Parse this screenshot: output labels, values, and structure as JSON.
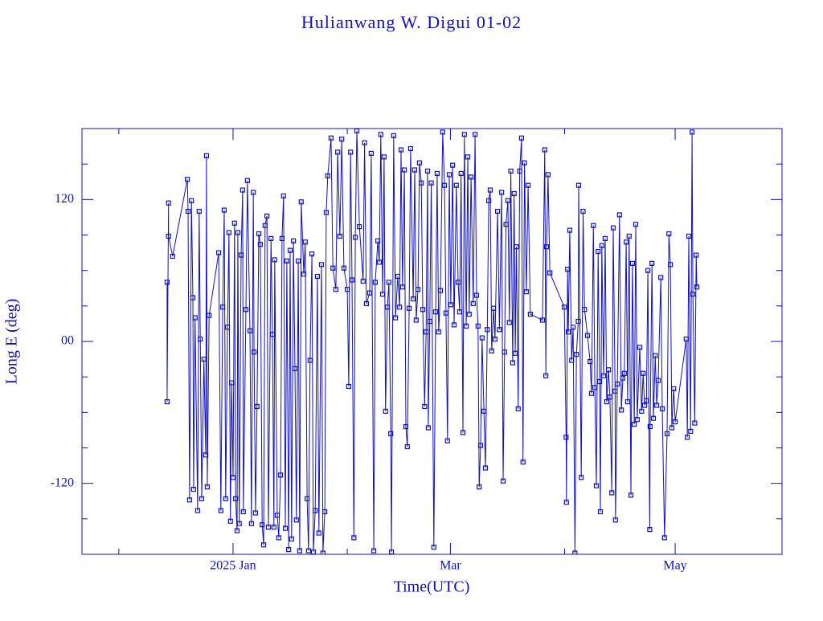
{
  "chart_data": {
    "type": "line",
    "title": "Hulianwang W. Digui 01-02",
    "xlabel": "Time(UTC)",
    "ylabel": "Long E (deg)",
    "color": "#1010c0",
    "xlim": [
      -41,
      149
    ],
    "xticks": [
      {
        "value": 0,
        "label": "2025 Jan"
      },
      {
        "value": 59,
        "label": "Mar"
      },
      {
        "value": 120,
        "label": "May"
      }
    ],
    "xminorticks": [
      -31,
      31,
      90
    ],
    "ylim": [
      -180,
      180
    ],
    "yticks": [
      {
        "value": -120,
        "label": "-120"
      },
      {
        "value": 0,
        "label": "00"
      },
      120
    ],
    "yminorticks": [
      -150,
      -90,
      -60,
      -30,
      30,
      60,
      90,
      150
    ],
    "x": [
      -17.9,
      -17.9,
      -17.5,
      -17.5,
      -16.4,
      -12.4,
      -12.2,
      -11.8,
      -11.3,
      -10.9,
      -10.7,
      -10.3,
      -9.6,
      -9.2,
      -8.9,
      -8.5,
      -7.9,
      -7.4,
      -7.2,
      -7.0,
      -6.5,
      -3.9,
      -3.3,
      -2.8,
      -2.4,
      -2.0,
      -1.5,
      -1.1,
      -0.7,
      -0.4,
      0,
      0.4,
      0.7,
      1.1,
      1.3,
      1.7,
      2.2,
      2.6,
      2.8,
      3.5,
      3.9,
      4.6,
      5.0,
      5.5,
      5.7,
      6.1,
      6.5,
      7.0,
      7.4,
      7.9,
      8.3,
      8.7,
      9.2,
      9.6,
      10.3,
      10.7,
      11.1,
      11.3,
      12.0,
      12.4,
      12.9,
      13.3,
      13.7,
      14.2,
      14.6,
      15.1,
      15.5,
      15.9,
      16.4,
      16.8,
      17.2,
      17.7,
      18.1,
      18.5,
      19.2,
      19.6,
      20.1,
      20.5,
      20.9,
      21.4,
      21.8,
      22.3,
      22.9,
      23.3,
      24.0,
      24.4,
      24.9,
      25.3,
      25.7,
      26.6,
      27.1,
      27.9,
      28.4,
      29.0,
      29.5,
      30.1,
      31.0,
      31.4,
      31.9,
      32.3,
      32.8,
      33.2,
      33.6,
      34.3,
      35.3,
      35.7,
      36.2,
      37.1,
      37.5,
      38.2,
      38.6,
      39.3,
      39.7,
      40.1,
      40.6,
      41.0,
      41.4,
      41.9,
      42.3,
      42.8,
      43.0,
      43.6,
      44.1,
      44.7,
      45.2,
      45.6,
      46.0,
      46.5,
      46.9,
      47.3,
      47.8,
      48.2,
      48.9,
      49.3,
      49.7,
      50.2,
      50.6,
      51.1,
      51.5,
      52.0,
      52.4,
      52.8,
      53.0,
      53.4,
      53.8,
      54.5,
      55.0,
      55.4,
      55.8,
      56.3,
      56.9,
      57.4,
      57.8,
      58.2,
      58.7,
      59.1,
      59.6,
      60.0,
      60.6,
      61.1,
      61.5,
      61.9,
      62.4,
      62.8,
      63.3,
      63.7,
      64.1,
      64.6,
      65.2,
      65.7,
      66.1,
      66.5,
      66.8,
      67.2,
      67.6,
      68.1,
      68.5,
      69.0,
      69.4,
      69.8,
      70.2,
      70.7,
      71.1,
      71.8,
      72.3,
      72.9,
      73.3,
      73.7,
      74.1,
      74.6,
      75.0,
      75.4,
      75.9,
      76.3,
      76.6,
      76.9,
      77.4,
      77.8,
      78.3,
      78.7,
      79.1,
      79.6,
      80.1,
      80.7,
      84.0,
      84.6,
      84.9,
      85.1,
      85.5,
      86.0,
      89.9,
      90.4,
      90.5,
      90.8,
      91.0,
      91.4,
      91.9,
      92.3,
      92.8,
      93.2,
      93.7,
      93.8,
      94.5,
      95.0,
      95.4,
      96.2,
      96.9,
      97.3,
      97.8,
      98.2,
      98.6,
      99.1,
      99.5,
      99.7,
      100.1,
      100.6,
      101.0,
      101.4,
      101.9,
      102.3,
      102.8,
      103.2,
      103.7,
      103.8,
      104.3,
      104.9,
      105.4,
      105.8,
      106.2,
      106.7,
      107.1,
      107.5,
      108.0,
      108.4,
      108.9,
      109.3,
      109.7,
      110.4,
      110.9,
      111.3,
      111.7,
      112.2,
      112.6,
      113.1,
      113.2,
      113.7,
      114.1,
      114.6,
      115.0,
      115.4,
      116.1,
      116.5,
      117.1,
      117.8,
      118.3,
      118.7,
      119.1,
      119.6,
      120.0,
      123.0,
      123.3,
      123.7,
      124.2,
      124.6,
      124.8,
      125.3,
      125.7,
      125.9
    ],
    "values": [
      50,
      -51,
      117,
      89,
      72,
      137,
      110,
      -134,
      119,
      37,
      -125,
      20,
      -143,
      110,
      2,
      -133,
      -15,
      -96,
      157,
      -123,
      22,
      75,
      -143,
      29,
      111,
      -133,
      12,
      92,
      -152,
      -35,
      -115,
      100,
      -133,
      -160,
      92,
      -154,
      73,
      128,
      -144,
      27,
      136,
      9,
      -154,
      126,
      -9,
      -145,
      -55,
      91,
      82,
      -155,
      -172,
      98,
      106,
      -157,
      87,
      6,
      -157,
      69,
      -147,
      -166,
      -113,
      87,
      123,
      -158,
      68,
      -176,
      77,
      -167,
      85,
      -23,
      -151,
      68,
      -177,
      118,
      57,
      84,
      -133,
      -177,
      -16,
      74,
      -178,
      -143,
      55,
      -162,
      65,
      -179,
      -144,
      109,
      140,
      172,
      62,
      44,
      160,
      89,
      171,
      62,
      44,
      -38,
      160,
      52,
      -166,
      88,
      178,
      97,
      51,
      168,
      32,
      41,
      159,
      -177,
      50,
      85,
      67,
      175,
      40,
      156,
      -59,
      29,
      50,
      -78,
      -178,
      174,
      20,
      55,
      29,
      162,
      46,
      145,
      -72,
      -89,
      28,
      163,
      36,
      145,
      18,
      44,
      151,
      134,
      27,
      -55,
      8,
      144,
      -73,
      17,
      134,
      -174,
      25,
      142,
      8,
      43,
      177,
      132,
      24,
      -84,
      141,
      31,
      149,
      14,
      132,
      50,
      25,
      142,
      -77,
      175,
      13,
      156,
      23,
      139,
      32,
      175,
      39,
      13,
      -123,
      -88,
      3,
      -59,
      -107,
      10,
      119,
      128,
      -8,
      28,
      2,
      110,
      10,
      126,
      -118,
      -9,
      99,
      119,
      16,
      144,
      -18,
      125,
      -10,
      80,
      -57,
      144,
      172,
      -102,
      151,
      42,
      132,
      23,
      18,
      162,
      -29,
      80,
      141,
      58,
      29,
      -81,
      -136,
      61,
      8,
      94,
      -16,
      12,
      -179,
      -11,
      17,
      132,
      -115,
      110,
      27,
      5,
      -17,
      -44,
      98,
      -39,
      -122,
      76,
      -34,
      -144,
      81,
      -29,
      87,
      -51,
      -24,
      -47,
      -128,
      96,
      -42,
      -151,
      -36,
      107,
      -58,
      -31,
      -27,
      84,
      -51,
      89,
      -130,
      66,
      -70,
      99,
      -66,
      -5,
      -59,
      -27,
      -54,
      -50,
      60,
      -159,
      -72,
      66,
      -65,
      -12,
      -54,
      -33,
      54,
      -57,
      -166,
      -78,
      91,
      65,
      -73,
      -40,
      -68,
      2,
      -81,
      89,
      -76,
      177,
      40,
      -69,
      73,
      46
    ]
  }
}
